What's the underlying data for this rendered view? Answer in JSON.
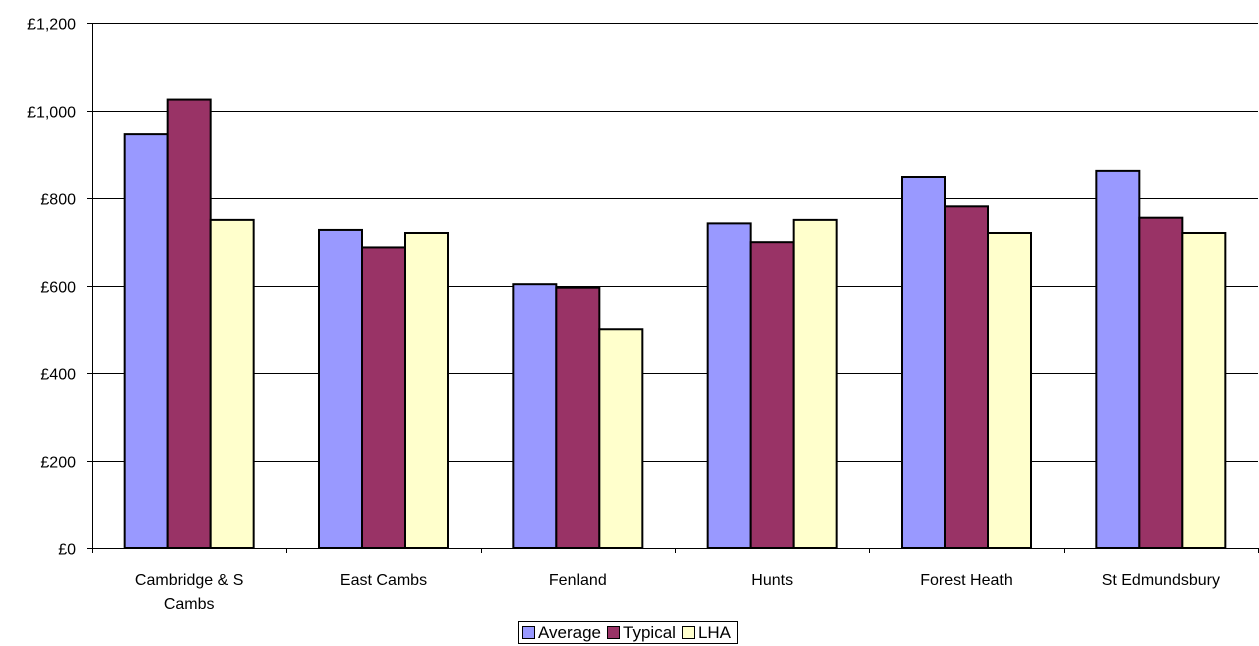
{
  "chart_data": {
    "type": "bar",
    "title": "",
    "xlabel": "",
    "ylabel": "",
    "categories": [
      [
        "Cambridge & S",
        "Cambs"
      ],
      [
        "East Cambs"
      ],
      [
        "Fenland"
      ],
      [
        "Hunts"
      ],
      [
        "Forest Heath"
      ],
      [
        "St Edmundsbury"
      ]
    ],
    "series": [
      {
        "name": "Average",
        "color": "#9999ff",
        "values": [
          946,
          727,
          603,
          742,
          848,
          862
        ]
      },
      {
        "name": "Typical",
        "color": "#993366",
        "values": [
          1025,
          687,
          595,
          699,
          781,
          755
        ]
      },
      {
        "name": "LHA",
        "color": "#ffffcc",
        "values": [
          750,
          720,
          500,
          750,
          720,
          720
        ]
      }
    ],
    "ylim": [
      0,
      1200
    ],
    "yticks": [
      0,
      200,
      400,
      600,
      800,
      1000,
      1200
    ],
    "ytick_labels": [
      "£0",
      "£200",
      "£400",
      "£600",
      "£800",
      "£1,000",
      "£1,200"
    ],
    "grid": true,
    "legend_position": "bottom"
  }
}
